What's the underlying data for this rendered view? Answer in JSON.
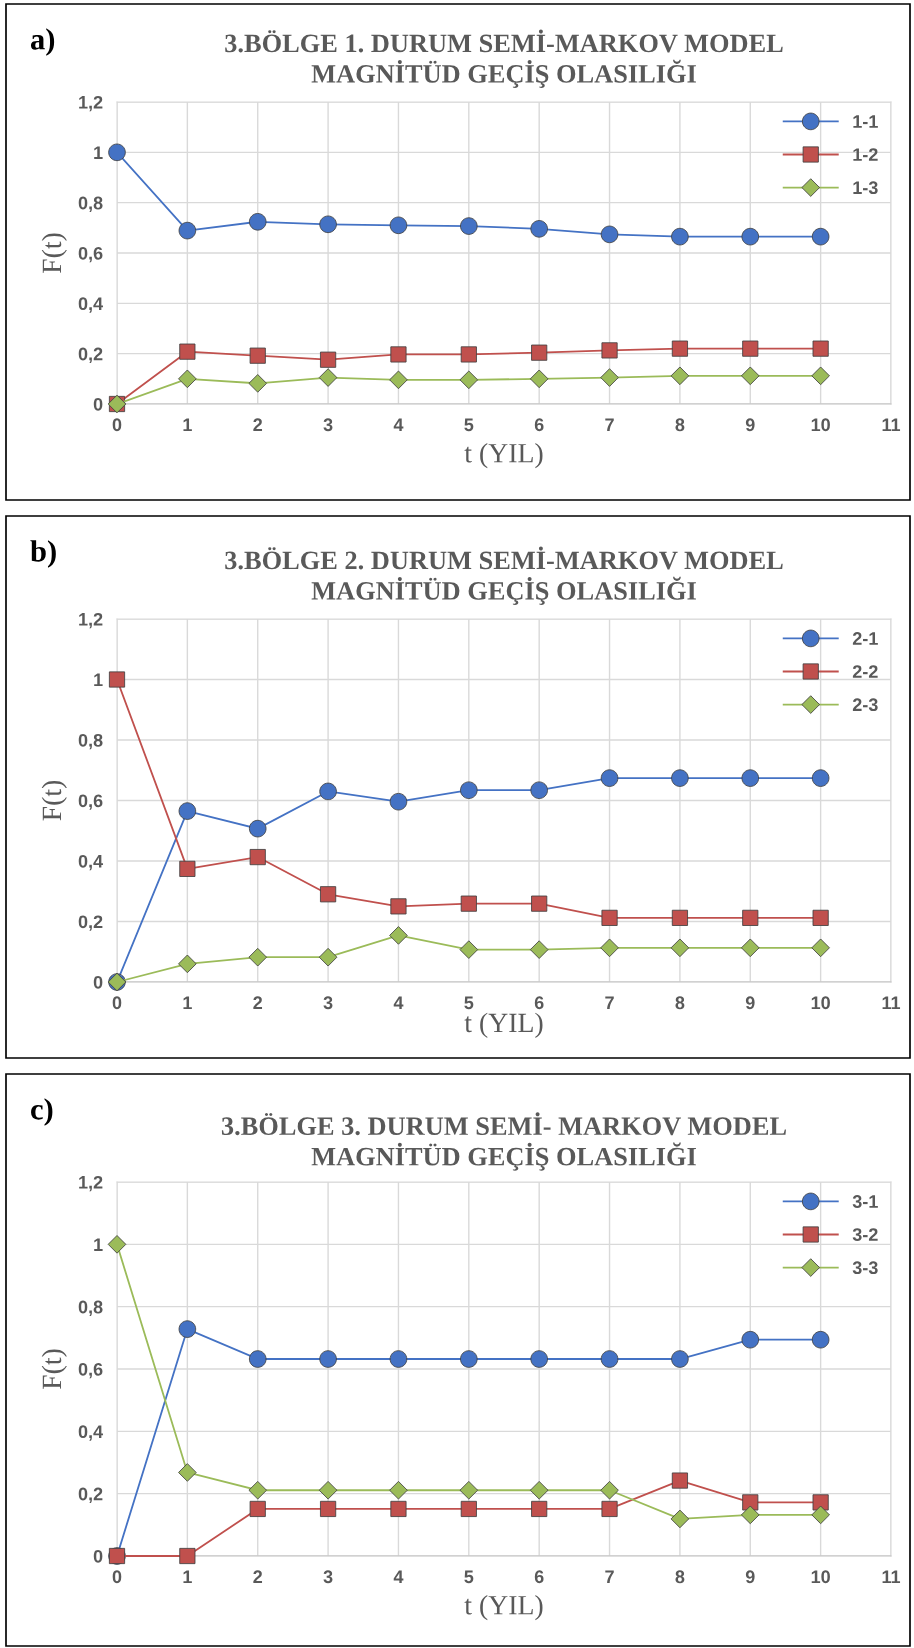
{
  "chart_data": [
    {
      "type": "line",
      "title": "3.BÖLGE 1. DURUM SEMİ-MARKOV MODEL\nMAGNİTÜD GEÇİŞ OLASILIĞI",
      "xlabel": "t (YIL)",
      "ylabel": "F(t)",
      "annotations": [
        "a)"
      ],
      "x": [
        0,
        1,
        2,
        3,
        4,
        5,
        6,
        7,
        8,
        9,
        10
      ],
      "xlim": [
        0,
        11
      ],
      "xticks": [
        0,
        1,
        2,
        3,
        4,
        5,
        6,
        7,
        8,
        9,
        10,
        11
      ],
      "ylim": [
        0,
        1.2
      ],
      "yticks": [
        {
          "value": 0,
          "label": "0"
        },
        {
          "value": 0.2,
          "label": "0,2"
        },
        {
          "value": 0.4,
          "label": "0,4"
        },
        {
          "value": 0.6,
          "label": "0,6"
        },
        {
          "value": 0.8,
          "label": "0,8"
        },
        {
          "value": 1,
          "label": "1"
        },
        {
          "value": 1.2,
          "label": "1,2"
        }
      ],
      "grid": true,
      "legend": "top right",
      "series": [
        {
          "name": "1-1",
          "color": "#4472c4",
          "marker": "circle",
          "values": [
            1,
            0.689,
            0.724,
            0.714,
            0.71,
            0.707,
            0.696,
            0.674,
            0.665,
            0.665,
            0.665
          ]
        },
        {
          "name": "1-2",
          "color": "#c0504d",
          "marker": "square",
          "values": [
            0,
            0.208,
            0.192,
            0.176,
            0.197,
            0.197,
            0.204,
            0.213,
            0.22,
            0.22,
            0.22
          ]
        },
        {
          "name": "1-3",
          "color": "#9bbb59",
          "marker": "diamond",
          "values": [
            0,
            0.1,
            0.082,
            0.105,
            0.096,
            0.096,
            0.1,
            0.105,
            0.112,
            0.112,
            0.112
          ]
        }
      ]
    },
    {
      "type": "line",
      "title": "3.BÖLGE 2. DURUM SEMİ-MARKOV MODEL\nMAGNİTÜD GEÇİŞ OLASILIĞI",
      "xlabel": "t (YIL)",
      "ylabel": "F(t)",
      "annotations": [
        "b)"
      ],
      "x": [
        0,
        1,
        2,
        3,
        4,
        5,
        6,
        7,
        8,
        9,
        10
      ],
      "xlim": [
        0,
        11
      ],
      "xticks": [
        0,
        1,
        2,
        3,
        4,
        5,
        6,
        7,
        8,
        9,
        10,
        11
      ],
      "ylim": [
        0,
        1.2
      ],
      "yticks": [
        {
          "value": 0,
          "label": "0"
        },
        {
          "value": 0.2,
          "label": "0,2"
        },
        {
          "value": 0.4,
          "label": "0,4"
        },
        {
          "value": 0.6,
          "label": "0,6"
        },
        {
          "value": 0.8,
          "label": "0,8"
        },
        {
          "value": 1,
          "label": "1"
        },
        {
          "value": 1.2,
          "label": "1,2"
        }
      ],
      "grid": true,
      "legend": "top right",
      "series": [
        {
          "name": "2-1",
          "color": "#4472c4",
          "marker": "circle",
          "values": [
            0,
            0.565,
            0.507,
            0.63,
            0.596,
            0.634,
            0.634,
            0.674,
            0.674,
            0.674,
            0.674
          ]
        },
        {
          "name": "2-2",
          "color": "#c0504d",
          "marker": "square",
          "values": [
            1,
            0.374,
            0.413,
            0.29,
            0.25,
            0.259,
            0.259,
            0.212,
            0.212,
            0.212,
            0.212
          ]
        },
        {
          "name": "2-3",
          "color": "#9bbb59",
          "marker": "diamond",
          "values": [
            0,
            0.06,
            0.082,
            0.082,
            0.154,
            0.107,
            0.107,
            0.113,
            0.113,
            0.113,
            0.113
          ]
        }
      ]
    },
    {
      "type": "line",
      "title": "3.BÖLGE 3. DURUM SEMİ- MARKOV MODEL\nMAGNİTÜD GEÇİŞ OLASILIĞI",
      "xlabel": "t (YIL)",
      "ylabel": "F(t)",
      "annotations": [
        "c)"
      ],
      "x": [
        0,
        1,
        2,
        3,
        4,
        5,
        6,
        7,
        8,
        9,
        10
      ],
      "xlim": [
        0,
        11
      ],
      "xticks": [
        0,
        1,
        2,
        3,
        4,
        5,
        6,
        7,
        8,
        9,
        10,
        11
      ],
      "ylim": [
        0,
        1.2
      ],
      "yticks": [
        {
          "value": 0,
          "label": "0"
        },
        {
          "value": 0.2,
          "label": "0,2"
        },
        {
          "value": 0.4,
          "label": "0,4"
        },
        {
          "value": 0.6,
          "label": "0,6"
        },
        {
          "value": 0.8,
          "label": "0,8"
        },
        {
          "value": 1,
          "label": "1"
        },
        {
          "value": 1.2,
          "label": "1,2"
        }
      ],
      "grid": true,
      "legend": "top right",
      "series": [
        {
          "name": "3-1",
          "color": "#4472c4",
          "marker": "circle",
          "values": [
            0,
            0.728,
            0.632,
            0.632,
            0.632,
            0.632,
            0.632,
            0.632,
            0.632,
            0.694,
            0.694
          ]
        },
        {
          "name": "3-2",
          "color": "#c0504d",
          "marker": "square",
          "values": [
            0,
            0,
            0.151,
            0.151,
            0.151,
            0.151,
            0.151,
            0.151,
            0.242,
            0.172,
            0.172
          ]
        },
        {
          "name": "3-3",
          "color": "#9bbb59",
          "marker": "diamond",
          "values": [
            1,
            0.268,
            0.211,
            0.211,
            0.211,
            0.211,
            0.211,
            0.211,
            0.119,
            0.132,
            0.132
          ]
        }
      ]
    }
  ]
}
